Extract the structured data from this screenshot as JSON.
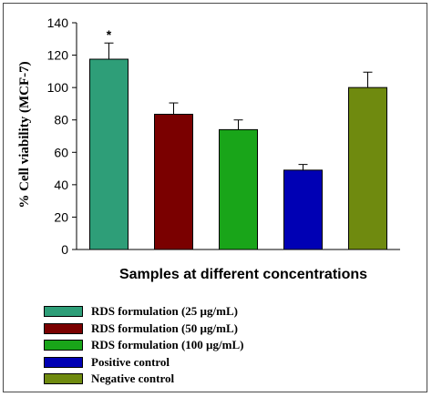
{
  "chart_data": {
    "type": "bar",
    "title": "",
    "xlabel": "Samples at different concentrations",
    "ylabel": "% Cell viability (MCF-7)",
    "ylim": [
      0,
      140
    ],
    "yticks": [
      "0",
      "20",
      "40",
      "60",
      "80",
      "100",
      "120",
      "140"
    ],
    "grid": false,
    "legend_position": "bottom-left",
    "categories": [
      "RDS formulation  (25 µg/mL)",
      "RDS formulation  (50 µg/mL)",
      "RDS formulation  (100 µg/mL)",
      "Positive control",
      "Negative control"
    ],
    "values": [
      117.5,
      83.5,
      74,
      49,
      100
    ],
    "errors": [
      10,
      7,
      6,
      3.5,
      9.5
    ],
    "colors": [
      "#2e9e78",
      "#7a0000",
      "#19a519",
      "#0000b4",
      "#6f8a0f"
    ],
    "annotations": [
      {
        "category_index": 0,
        "text": "*"
      }
    ]
  }
}
